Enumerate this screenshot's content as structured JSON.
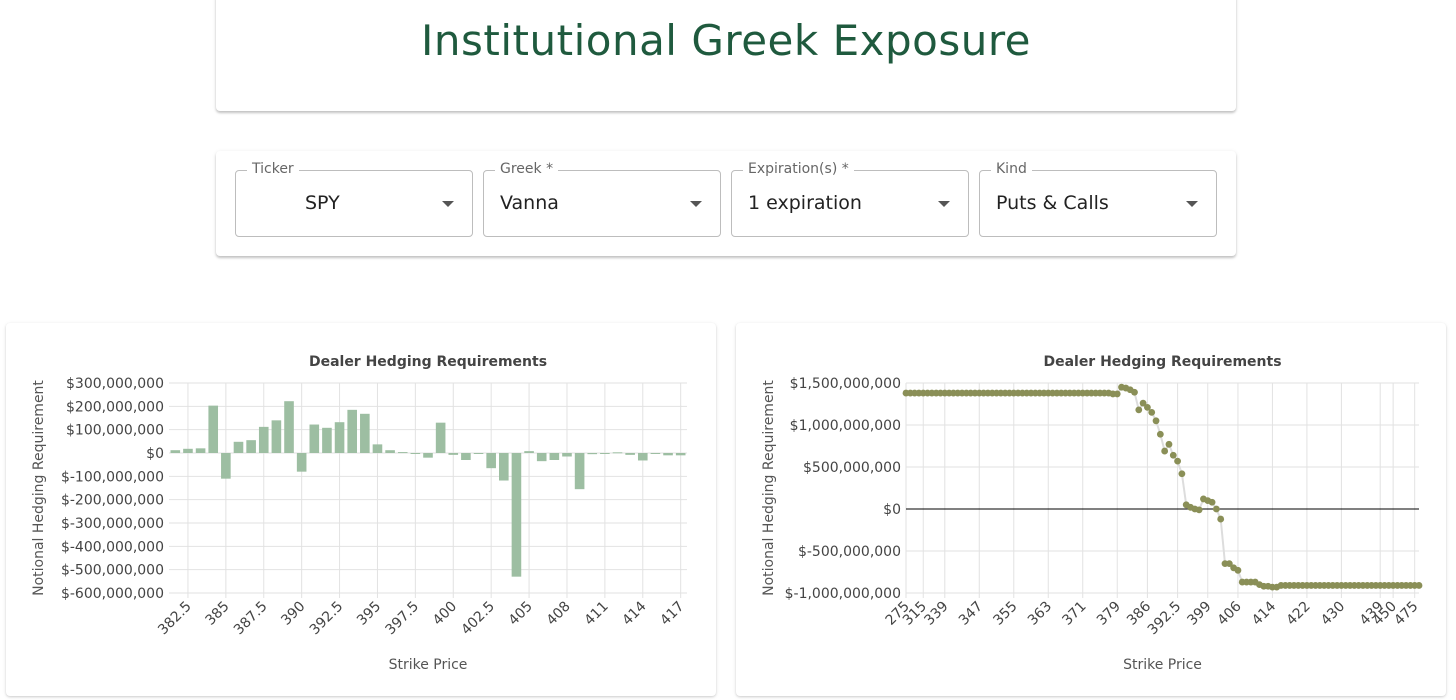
{
  "header": {
    "title": "Institutional Greek Exposure"
  },
  "controls": [
    {
      "label": "Ticker",
      "value": "SPY"
    },
    {
      "label": "Greek *",
      "value": "Vanna"
    },
    {
      "label": "Expiration(s) *",
      "value": "1 expiration"
    },
    {
      "label": "Kind",
      "value": "Puts & Calls"
    }
  ],
  "colors": {
    "title": "#1f5a3e",
    "bar": "#9dbea2",
    "dot": "#8a8f57",
    "line": "#dddddd",
    "zero": "#000000"
  },
  "chart_data": [
    {
      "type": "bar",
      "title": "Dealer Hedging Requirements",
      "xlabel": "Strike Price",
      "ylabel": "Notional Hedging Requirement",
      "ylim": [
        -600000000,
        300000000
      ],
      "yticks": [
        "$300,000,000",
        "$200,000,000",
        "$100,000,000",
        "$0",
        "$-100,000,000",
        "$-200,000,000",
        "$-300,000,000",
        "$-400,000,000",
        "$-500,000,000",
        "$-600,000,000"
      ],
      "xticks": [
        "382.5",
        "385",
        "387.5",
        "390",
        "392.5",
        "395",
        "397.5",
        "400",
        "402.5",
        "405",
        "408",
        "411",
        "414",
        "417"
      ],
      "categories": [
        "381.5",
        "382.5",
        "383.5",
        "384.5",
        "385",
        "385.5",
        "386.5",
        "387.5",
        "388.5",
        "389.5",
        "390",
        "390.5",
        "391.5",
        "392.5",
        "393.5",
        "394.5",
        "395",
        "395.5",
        "396.5",
        "397.5",
        "398.5",
        "399.5",
        "400",
        "400.5",
        "401.5",
        "402.5",
        "403.5",
        "404.5",
        "405",
        "406",
        "407",
        "408",
        "409",
        "410",
        "411",
        "412",
        "413",
        "414",
        "415",
        "416",
        "417"
      ],
      "values": [
        12000000,
        18000000,
        20000000,
        203000000,
        -110000000,
        48000000,
        55000000,
        112000000,
        140000000,
        222000000,
        -80000000,
        122000000,
        108000000,
        132000000,
        185000000,
        168000000,
        37000000,
        12000000,
        4000000,
        -2000000,
        -20000000,
        130000000,
        -8000000,
        -30000000,
        0,
        -65000000,
        -118000000,
        -530000000,
        8000000,
        -35000000,
        -30000000,
        -15000000,
        -155000000,
        -5000000,
        0,
        3000000,
        -8000000,
        -32000000,
        -2000000,
        -10000000,
        -10000000
      ],
      "grid": true
    },
    {
      "type": "scatter",
      "title": "Dealer Hedging Requirements",
      "xlabel": "Strike Price",
      "ylabel": "Notional Hedging Requirement",
      "ylim": [
        -1000000000,
        1500000000
      ],
      "yticks": [
        "$1,500,000,000",
        "$1,000,000,000",
        "$500,000,000",
        "$0",
        "$-500,000,000",
        "$-1,000,000,000"
      ],
      "xticks": [
        "275",
        "315",
        "339",
        "347",
        "355",
        "363",
        "371",
        "379",
        "386",
        "392.5",
        "399",
        "406",
        "414",
        "422",
        "430",
        "439",
        "450",
        "475"
      ],
      "x": [
        275,
        300,
        305,
        310,
        315,
        320,
        325,
        330,
        335,
        339,
        340,
        341,
        342,
        343,
        344,
        345,
        346,
        347,
        348,
        349,
        350,
        351,
        352,
        353,
        354,
        355,
        356,
        357,
        358,
        359,
        360,
        361,
        362,
        363,
        364,
        365,
        366,
        367,
        368,
        369,
        370,
        371,
        372,
        373,
        374,
        375,
        376,
        377,
        378,
        379,
        380,
        381,
        382,
        383,
        384,
        385,
        386,
        387,
        388,
        389,
        390,
        391,
        392,
        392.5,
        393,
        394,
        395,
        396,
        397,
        398,
        399,
        400,
        401,
        402,
        403,
        404,
        405,
        406,
        407,
        408,
        409,
        410,
        411,
        412,
        413,
        414,
        415,
        416,
        417,
        418,
        419,
        420,
        421,
        422,
        423,
        424,
        425,
        426,
        427,
        428,
        429,
        430,
        431,
        432,
        433,
        434,
        435,
        436,
        437,
        438,
        439,
        440,
        445,
        450,
        455,
        460,
        465,
        470,
        475,
        480
      ],
      "values": [
        1380000000,
        1380000000,
        1380000000,
        1380000000,
        1380000000,
        1380000000,
        1380000000,
        1380000000,
        1380000000,
        1380000000,
        1380000000,
        1380000000,
        1380000000,
        1380000000,
        1380000000,
        1380000000,
        1380000000,
        1380000000,
        1380000000,
        1380000000,
        1380000000,
        1380000000,
        1380000000,
        1380000000,
        1380000000,
        1380000000,
        1380000000,
        1380000000,
        1380000000,
        1380000000,
        1380000000,
        1380000000,
        1380000000,
        1380000000,
        1380000000,
        1380000000,
        1380000000,
        1380000000,
        1380000000,
        1380000000,
        1380000000,
        1380000000,
        1380000000,
        1380000000,
        1380000000,
        1380000000,
        1380000000,
        1380000000,
        1370000000,
        1370000000,
        1450000000,
        1440000000,
        1420000000,
        1390000000,
        1180000000,
        1260000000,
        1210000000,
        1150000000,
        1050000000,
        890000000,
        690000000,
        770000000,
        640000000,
        570000000,
        420000000,
        50000000,
        20000000,
        0,
        -10000000,
        120000000,
        100000000,
        80000000,
        0,
        -120000000,
        -650000000,
        -650000000,
        -700000000,
        -730000000,
        -870000000,
        -870000000,
        -870000000,
        -870000000,
        -900000000,
        -920000000,
        -920000000,
        -930000000,
        -930000000,
        -910000000,
        -910000000,
        -910000000,
        -910000000,
        -910000000,
        -910000000,
        -910000000,
        -910000000,
        -910000000,
        -910000000,
        -910000000,
        -910000000,
        -910000000,
        -910000000,
        -910000000,
        -910000000,
        -910000000,
        -910000000,
        -910000000,
        -910000000,
        -910000000,
        -910000000,
        -910000000,
        -910000000,
        -910000000,
        -910000000,
        -910000000,
        -910000000,
        -910000000,
        -910000000,
        -910000000,
        -910000000,
        -910000000
      ],
      "grid": true
    }
  ]
}
